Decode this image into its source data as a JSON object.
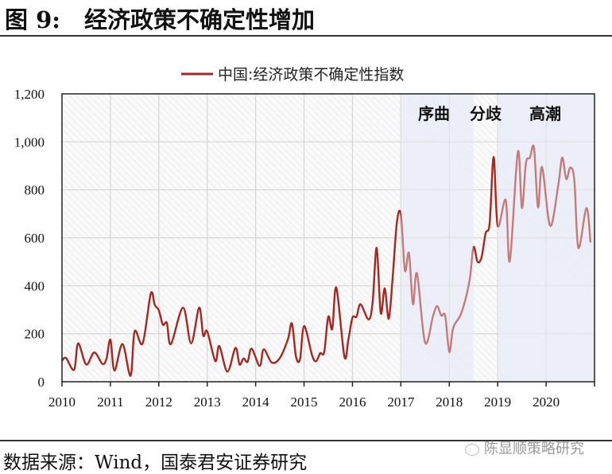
{
  "header": {
    "figure_label": "图 9:",
    "title": "经济政策不确定性增加"
  },
  "footer": {
    "source": "数据来源：Wind，国泰君安证券研究",
    "watermark": "陈显顺策略研究",
    "watermark_icon": "wechat-icon"
  },
  "chart_data": {
    "type": "line",
    "title": "",
    "xlabel": "",
    "ylabel": "",
    "xlim": [
      "2010-01",
      "2021-01"
    ],
    "ylim": [
      0,
      1200
    ],
    "yticks": [
      "0",
      "200",
      "400",
      "600",
      "800",
      "1,000",
      "1,200"
    ],
    "ytick_values": [
      0,
      200,
      400,
      600,
      800,
      1000,
      1200
    ],
    "xticks": [
      "2010",
      "2011",
      "2012",
      "2013",
      "2014",
      "2015",
      "2016",
      "2017",
      "2018",
      "2019",
      "2020"
    ],
    "grid": true,
    "legend": "top-center",
    "colors": {
      "line": "#a82620",
      "shade": "#e6eaf6",
      "grid": "#d6d6d6"
    },
    "series": [
      {
        "name": "中国:经济政策不确定性指数",
        "points": [
          [
            "2010-01",
            88
          ],
          [
            "2010-02",
            99
          ],
          [
            "2010-04",
            50
          ],
          [
            "2010-05",
            160
          ],
          [
            "2010-07",
            72
          ],
          [
            "2010-09",
            122
          ],
          [
            "2010-11",
            75
          ],
          [
            "2010-12",
            94
          ],
          [
            "2011-01",
            175
          ],
          [
            "2011-02",
            47
          ],
          [
            "2011-04",
            157
          ],
          [
            "2011-06",
            25
          ],
          [
            "2011-07",
            210
          ],
          [
            "2011-09",
            160
          ],
          [
            "2011-11",
            367
          ],
          [
            "2011-12",
            320
          ],
          [
            "2012-01",
            298
          ],
          [
            "2012-02",
            238
          ],
          [
            "2012-03",
            245
          ],
          [
            "2012-04",
            157
          ],
          [
            "2012-07",
            309
          ],
          [
            "2012-09",
            160
          ],
          [
            "2012-11",
            309
          ],
          [
            "2012-12",
            193
          ],
          [
            "2013-01",
            210
          ],
          [
            "2013-03",
            86
          ],
          [
            "2013-04",
            149
          ],
          [
            "2013-06",
            42
          ],
          [
            "2013-08",
            141
          ],
          [
            "2013-09",
            72
          ],
          [
            "2013-10",
            97
          ],
          [
            "2013-11",
            83
          ],
          [
            "2013-12",
            138
          ],
          [
            "2014-02",
            66
          ],
          [
            "2014-03",
            135
          ],
          [
            "2014-05",
            80
          ],
          [
            "2014-07",
            99
          ],
          [
            "2014-09",
            177
          ],
          [
            "2014-10",
            243
          ],
          [
            "2014-11",
            105
          ],
          [
            "2014-12",
            94
          ],
          [
            "2015-01",
            232
          ],
          [
            "2015-03",
            110
          ],
          [
            "2015-04",
            86
          ],
          [
            "2015-05",
            119
          ],
          [
            "2015-06",
            124
          ],
          [
            "2015-07",
            271
          ],
          [
            "2015-08",
            221
          ],
          [
            "2015-09",
            392
          ],
          [
            "2015-11",
            105
          ],
          [
            "2015-12",
            177
          ],
          [
            "2016-01",
            267
          ],
          [
            "2016-02",
            271
          ],
          [
            "2016-03",
            323
          ],
          [
            "2016-05",
            260
          ],
          [
            "2016-06",
            331
          ],
          [
            "2016-07",
            558
          ],
          [
            "2016-08",
            287
          ],
          [
            "2016-09",
            389
          ],
          [
            "2016-10",
            263
          ],
          [
            "2016-11",
            442
          ],
          [
            "2016-12",
            663
          ],
          [
            "2017-01",
            698
          ],
          [
            "2017-02",
            464
          ],
          [
            "2017-03",
            536
          ],
          [
            "2017-04",
            323
          ],
          [
            "2017-05",
            451
          ],
          [
            "2017-07",
            163
          ],
          [
            "2017-09",
            276
          ],
          [
            "2017-10",
            315
          ],
          [
            "2017-11",
            276
          ],
          [
            "2017-12",
            274
          ],
          [
            "2018-01",
            124
          ],
          [
            "2018-02",
            226
          ],
          [
            "2018-04",
            287
          ],
          [
            "2018-06",
            420
          ],
          [
            "2018-07",
            561
          ],
          [
            "2018-08",
            500
          ],
          [
            "2018-09",
            519
          ],
          [
            "2018-10",
            619
          ],
          [
            "2018-11",
            660
          ],
          [
            "2018-12",
            937
          ],
          [
            "2019-01",
            650
          ],
          [
            "2019-03",
            757
          ],
          [
            "2019-04",
            503
          ],
          [
            "2019-06",
            959
          ],
          [
            "2019-07",
            724
          ],
          [
            "2019-08",
            911
          ],
          [
            "2019-09",
            934
          ],
          [
            "2019-10",
            975
          ],
          [
            "2019-11",
            727
          ],
          [
            "2019-12",
            895
          ],
          [
            "2020-02",
            650
          ],
          [
            "2020-04",
            818
          ],
          [
            "2020-05",
            934
          ],
          [
            "2020-06",
            845
          ],
          [
            "2020-07",
            893
          ],
          [
            "2020-08",
            840
          ],
          [
            "2020-09",
            558
          ],
          [
            "2020-11",
            724
          ],
          [
            "2020-12",
            580
          ]
        ]
      }
    ],
    "shaded_periods": [
      {
        "start": "2017-01",
        "end": "2018-07"
      },
      {
        "start": "2019-01",
        "end": "2021-01"
      }
    ],
    "annotations": [
      "序曲",
      "分歧",
      "高潮"
    ]
  }
}
